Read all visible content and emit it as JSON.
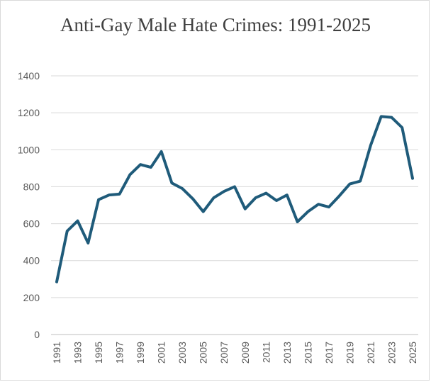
{
  "chart_data": {
    "type": "line",
    "title": "Anti-Gay Male Hate Crimes: 1991-2025",
    "xlabel": "",
    "ylabel": "",
    "ylim": [
      0,
      1400
    ],
    "yticks": [
      0,
      200,
      400,
      600,
      800,
      1000,
      1200,
      1400
    ],
    "x": [
      1991,
      1992,
      1993,
      1994,
      1995,
      1996,
      1997,
      1998,
      1999,
      2000,
      2001,
      2002,
      2003,
      2004,
      2005,
      2006,
      2007,
      2008,
      2009,
      2010,
      2011,
      2012,
      2013,
      2014,
      2015,
      2016,
      2017,
      2018,
      2019,
      2020,
      2021,
      2022,
      2023,
      2024,
      2025
    ],
    "xtick_labels": [
      "1991",
      "1993",
      "1995",
      "1997",
      "1999",
      "2001",
      "2003",
      "2005",
      "2007",
      "2009",
      "2011",
      "2013",
      "2015",
      "2017",
      "2019",
      "2021",
      "2023",
      "2025"
    ],
    "series": [
      {
        "values": [
          285,
          560,
          615,
          495,
          730,
          755,
          760,
          865,
          920,
          905,
          990,
          820,
          790,
          735,
          665,
          740,
          775,
          800,
          680,
          740,
          765,
          725,
          755,
          610,
          665,
          705,
          690,
          750,
          815,
          830,
          1025,
          1180,
          1175,
          1120,
          845
        ],
        "color": "#1f5b7a"
      }
    ],
    "grid": true,
    "legend": "none"
  }
}
